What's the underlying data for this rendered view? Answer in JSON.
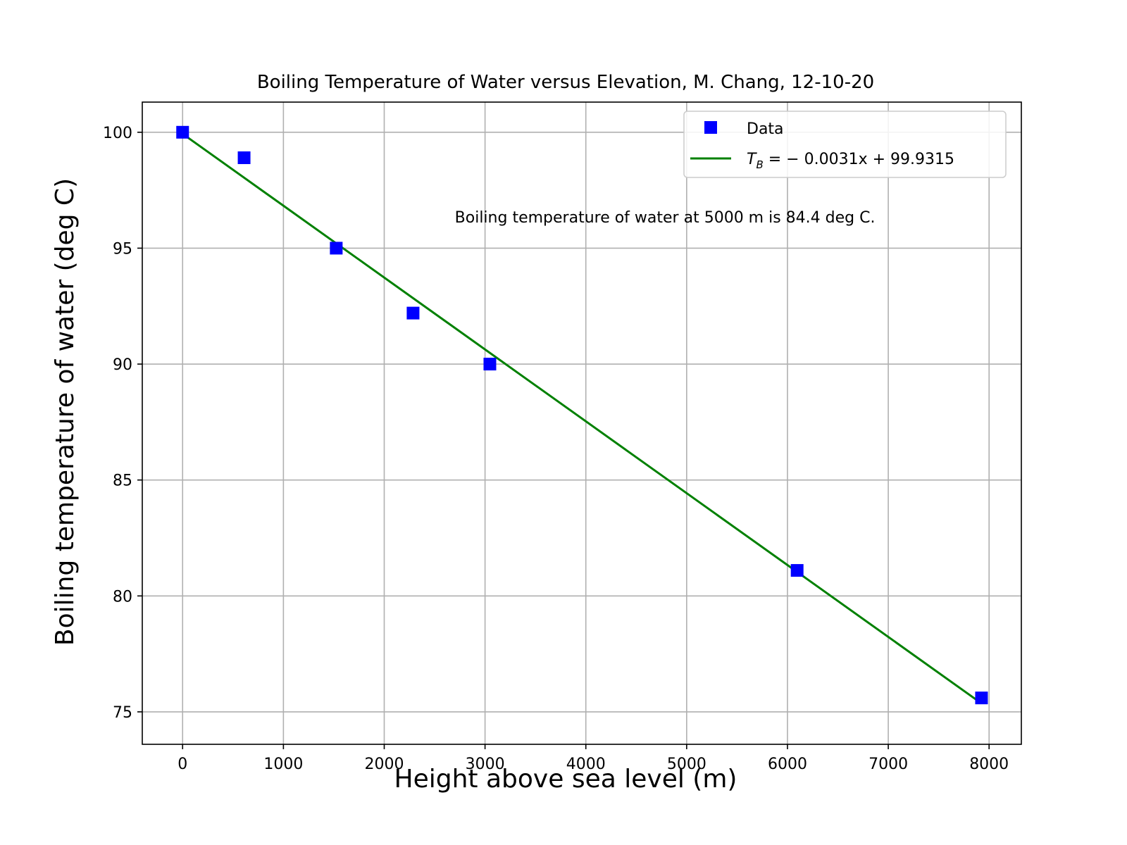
{
  "chart_data": {
    "type": "scatter",
    "title": "Boiling Temperature of Water versus Elevation, M. Chang, 12-10-20",
    "xlabel": "Height above sea level (m)",
    "ylabel": "Boiling temperature of water (deg C)",
    "xlim": [
      -400,
      8320
    ],
    "ylim": [
      73.6,
      101.3
    ],
    "xticks": [
      0,
      1000,
      2000,
      3000,
      4000,
      5000,
      6000,
      7000,
      8000
    ],
    "yticks": [
      75,
      80,
      85,
      90,
      95,
      100
    ],
    "grid": true,
    "legend_position": "top-right",
    "series": [
      {
        "name": "Data",
        "kind": "scatter",
        "marker": "square",
        "color": "#0000ff",
        "x": [
          0,
          610,
          1524,
          2286,
          3048,
          6096,
          7925
        ],
        "y": [
          100,
          98.9,
          95,
          92.2,
          90,
          81.1,
          75.6
        ]
      },
      {
        "name": "T_B = -0.0031x + 99.9315",
        "kind": "line",
        "color": "#008000",
        "slope": -0.0031,
        "intercept": 99.9315,
        "x_range": [
          0,
          7925
        ]
      }
    ],
    "legend": {
      "data_label": "Data",
      "fit_label": {
        "var": "T",
        "sub": "B",
        "rest": " = − 0.0031x + 99.9315"
      }
    },
    "annotation": {
      "text": "Boiling temperature of water at 5000 m is 84.4 deg C.",
      "x": 2700,
      "y": 96.1
    }
  }
}
